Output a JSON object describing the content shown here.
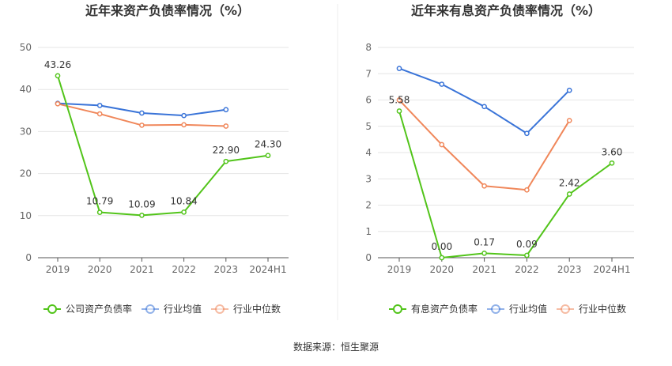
{
  "chart_data": [
    {
      "type": "line",
      "title": "近年来资产负债率情况（%）",
      "categories": [
        "2019",
        "2020",
        "2021",
        "2022",
        "2023",
        "2024H1"
      ],
      "ylim": [
        0,
        50
      ],
      "yticks": [
        "0",
        "10",
        "20",
        "30",
        "40",
        "50"
      ],
      "grid": true,
      "legend_position": "bottom",
      "series": [
        {
          "name": "公司资产负债率",
          "color": "#52c41a",
          "values": [
            43.26,
            10.79,
            10.09,
            10.84,
            22.9,
            24.3
          ],
          "labels": [
            "43.26",
            "10.79",
            "10.09",
            "10.84",
            "22.90",
            "24.30"
          ]
        },
        {
          "name": "行业均值",
          "color": "#3a74d8",
          "values": [
            36.7,
            36.2,
            34.4,
            33.8,
            35.2,
            null
          ]
        },
        {
          "name": "行业中位数",
          "color": "#f0875a",
          "values": [
            36.6,
            34.2,
            31.5,
            31.6,
            31.3,
            null
          ]
        }
      ]
    },
    {
      "type": "line",
      "title": "近年来有息资产负债率情况（%）",
      "categories": [
        "2019",
        "2020",
        "2021",
        "2022",
        "2023",
        "2024H1"
      ],
      "ylim": [
        0,
        8
      ],
      "yticks": [
        "0",
        "1",
        "2",
        "3",
        "4",
        "5",
        "6",
        "7",
        "8"
      ],
      "grid": true,
      "legend_position": "bottom",
      "series": [
        {
          "name": "有息资产负债率",
          "color": "#52c41a",
          "values": [
            5.58,
            0.0,
            0.17,
            0.09,
            2.42,
            3.6
          ],
          "labels": [
            "5.58",
            "0.00",
            "0.17",
            "0.09",
            "2.42",
            "3.60"
          ]
        },
        {
          "name": "行业均值",
          "color": "#3a74d8",
          "values": [
            7.2,
            6.6,
            5.75,
            4.73,
            6.37,
            null
          ]
        },
        {
          "name": "行业中位数",
          "color": "#f0875a",
          "values": [
            6.0,
            4.3,
            2.73,
            2.58,
            5.22,
            null
          ]
        }
      ]
    }
  ],
  "source": "数据来源：恒生聚源"
}
